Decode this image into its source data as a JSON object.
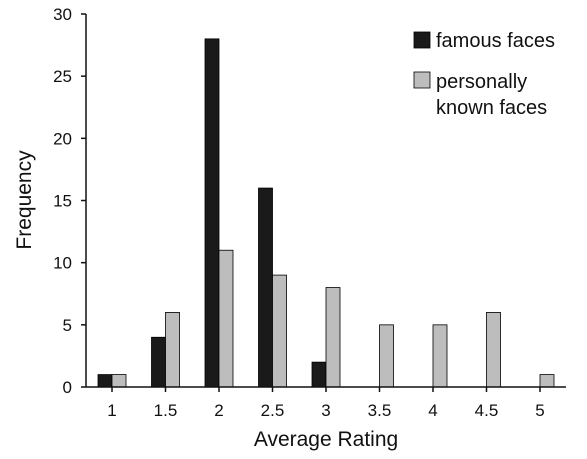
{
  "chart_data": {
    "type": "bar",
    "title": "",
    "xlabel": "Average Rating",
    "ylabel": "Frequency",
    "categories": [
      "1",
      "1.5",
      "2",
      "2.5",
      "3",
      "3.5",
      "4",
      "4.5",
      "5"
    ],
    "ylim": [
      0,
      30
    ],
    "yticks": [
      "0",
      "5",
      "10",
      "15",
      "20",
      "25",
      "30"
    ],
    "grid": false,
    "legend_position": "top-right",
    "series": [
      {
        "name": "famous faces",
        "color": "#1a1a1a",
        "values": [
          1,
          4,
          28,
          16,
          2,
          0,
          0,
          0,
          0
        ]
      },
      {
        "name": "personally known faces",
        "legend_lines": [
          "personally",
          "known faces"
        ],
        "color": "#bdbdbd",
        "values": [
          1,
          6,
          11,
          9,
          8,
          5,
          5,
          6,
          1
        ]
      }
    ]
  }
}
